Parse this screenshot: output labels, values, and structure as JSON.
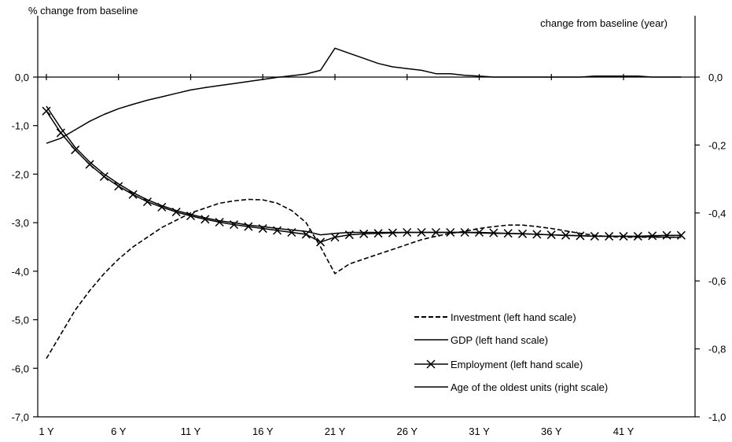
{
  "chart_data": {
    "type": "line",
    "ylabel_left": "% change from baseline",
    "ylabel_right": "change from baseline (year)",
    "categories": [
      "1 Y",
      "2 Y",
      "3 Y",
      "4 Y",
      "5 Y",
      "6 Y",
      "7 Y",
      "8 Y",
      "9 Y",
      "10 Y",
      "11 Y",
      "12 Y",
      "13 Y",
      "14 Y",
      "15 Y",
      "16 Y",
      "17 Y",
      "18 Y",
      "19 Y",
      "20 Y",
      "21 Y",
      "22 Y",
      "23 Y",
      "24 Y",
      "25 Y",
      "26 Y",
      "27 Y",
      "28 Y",
      "29 Y",
      "30 Y",
      "31 Y",
      "32 Y",
      "33 Y",
      "34 Y",
      "35 Y",
      "36 Y",
      "37 Y",
      "38 Y",
      "39 Y",
      "40 Y",
      "41 Y",
      "42 Y",
      "43 Y",
      "44 Y",
      "45 Y"
    ],
    "x_tick_labels": [
      "1 Y",
      "6 Y",
      "11 Y",
      "16 Y",
      "21 Y",
      "26 Y",
      "31 Y",
      "36 Y",
      "41 Y"
    ],
    "y_left_ticks": [
      "0,0",
      "-1,0",
      "-2,0",
      "-3,0",
      "-4,0",
      "-5,0",
      "-6,0",
      "-7,0"
    ],
    "y_right_ticks": [
      "0,0",
      "-0,2",
      "-0,4",
      "-0,6",
      "-0,8",
      "-1,0"
    ],
    "ylim_left": [
      -7,
      0.7
    ],
    "ylim_right": [
      -1,
      0.1
    ],
    "grid": false,
    "legend_position": "bottom-right",
    "series": [
      {
        "name": "Investment (left hand scale)",
        "axis": "left",
        "style": "dashed",
        "values": [
          -5.8,
          -5.3,
          -4.8,
          -4.4,
          -4.05,
          -3.75,
          -3.5,
          -3.3,
          -3.1,
          -2.95,
          -2.8,
          -2.7,
          -2.6,
          -2.55,
          -2.52,
          -2.53,
          -2.6,
          -2.75,
          -3.0,
          -3.5,
          -4.05,
          -3.85,
          -3.75,
          -3.65,
          -3.55,
          -3.45,
          -3.35,
          -3.28,
          -3.22,
          -3.18,
          -3.12,
          -3.08,
          -3.05,
          -3.05,
          -3.08,
          -3.12,
          -3.17,
          -3.22,
          -3.26,
          -3.29,
          -3.3,
          -3.3,
          -3.3,
          -3.3,
          -3.3
        ]
      },
      {
        "name": "GDP (left hand scale)",
        "axis": "left",
        "style": "solid",
        "values": [
          -0.6,
          -1.05,
          -1.45,
          -1.75,
          -2.0,
          -2.2,
          -2.38,
          -2.53,
          -2.65,
          -2.75,
          -2.83,
          -2.9,
          -2.96,
          -3.0,
          -3.05,
          -3.08,
          -3.12,
          -3.15,
          -3.18,
          -3.25,
          -3.22,
          -3.2,
          -3.2,
          -3.2,
          -3.2,
          -3.2,
          -3.2,
          -3.2,
          -3.2,
          -3.2,
          -3.21,
          -3.22,
          -3.22,
          -3.23,
          -3.24,
          -3.25,
          -3.26,
          -3.27,
          -3.28,
          -3.28,
          -3.28,
          -3.29,
          -3.29,
          -3.3,
          -3.3
        ]
      },
      {
        "name": "Employment (left hand scale)",
        "axis": "left",
        "style": "solid-x",
        "values": [
          -0.7,
          -1.15,
          -1.5,
          -1.8,
          -2.05,
          -2.25,
          -2.42,
          -2.57,
          -2.68,
          -2.78,
          -2.86,
          -2.93,
          -2.99,
          -3.04,
          -3.08,
          -3.12,
          -3.16,
          -3.2,
          -3.24,
          -3.4,
          -3.3,
          -3.25,
          -3.23,
          -3.22,
          -3.21,
          -3.2,
          -3.2,
          -3.2,
          -3.2,
          -3.2,
          -3.2,
          -3.21,
          -3.22,
          -3.23,
          -3.24,
          -3.25,
          -3.26,
          -3.27,
          -3.28,
          -3.28,
          -3.28,
          -3.28,
          -3.27,
          -3.26,
          -3.26
        ]
      },
      {
        "name": "Age of the oldest units (right scale)",
        "axis": "right",
        "style": "solid",
        "values": [
          -0.195,
          -0.18,
          -0.155,
          -0.13,
          -0.11,
          -0.093,
          -0.08,
          -0.068,
          -0.058,
          -0.048,
          -0.038,
          -0.031,
          -0.025,
          -0.019,
          -0.013,
          -0.007,
          -0.001,
          0.004,
          0.009,
          0.02,
          0.085,
          0.07,
          0.055,
          0.04,
          0.03,
          0.025,
          0.02,
          0.01,
          0.01,
          0.005,
          0.003,
          0.0,
          0.0,
          0.0,
          0.0,
          0.0,
          0.0,
          0.0,
          0.003,
          0.003,
          0.003,
          0.003,
          0.0,
          0.0,
          0.0
        ]
      }
    ]
  }
}
